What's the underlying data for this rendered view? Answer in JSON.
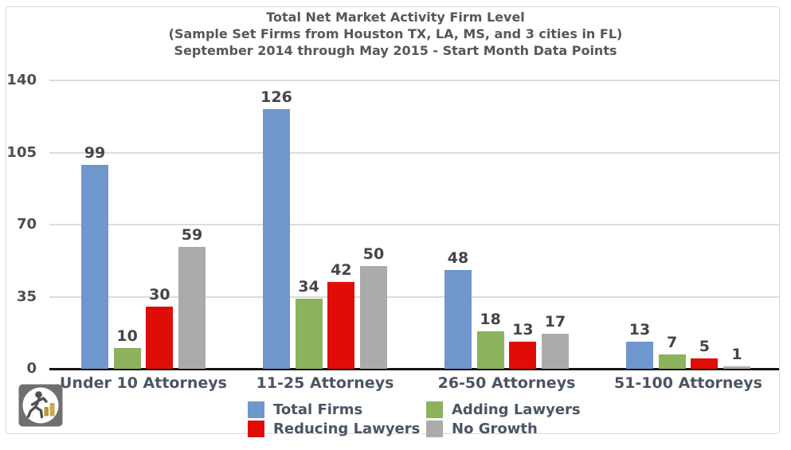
{
  "chart_data": {
    "type": "bar",
    "title": "Total Net Market Activity Firm Level",
    "subtitle_lines": [
      "(Sample Set Firms from Houston TX, LA, MS, and 3 cities in FL)",
      "September 2014 through May 2015 - Start Month Data Points"
    ],
    "categories": [
      "Under 10 Attorneys",
      "11-25 Attorneys",
      "26-50 Attorneys",
      "51-100 Attorneys"
    ],
    "series": [
      {
        "name": "Total Firms",
        "color": "#7096CE",
        "values": [
          99,
          126,
          48,
          13
        ]
      },
      {
        "name": "Adding Lawyers",
        "color": "#8CB25E",
        "values": [
          10,
          34,
          18,
          7
        ]
      },
      {
        "name": "Reducing Lawyers",
        "color": "#E00D06",
        "values": [
          30,
          42,
          13,
          5
        ]
      },
      {
        "name": "No Growth",
        "color": "#ABABAB",
        "values": [
          59,
          50,
          17,
          1
        ]
      }
    ],
    "xlabel": "",
    "ylabel": "",
    "ylim": [
      0,
      140
    ],
    "y_ticks": [
      0,
      35,
      70,
      105,
      140
    ],
    "grid": true,
    "legend_position": "bottom",
    "legend_columns": 2,
    "data_labels_shown": true
  },
  "colors": {
    "grid_line": "#DCDCDC",
    "axis_line": "#141414",
    "frame_border": "#D9D9D9",
    "title_text": "#575757",
    "value_text": "#454545",
    "category_text": "#4A5565",
    "logo_square": "#6E6F71",
    "logo_gold": "#C3A04C"
  },
  "logo_icon": "runner-with-bar-chart"
}
